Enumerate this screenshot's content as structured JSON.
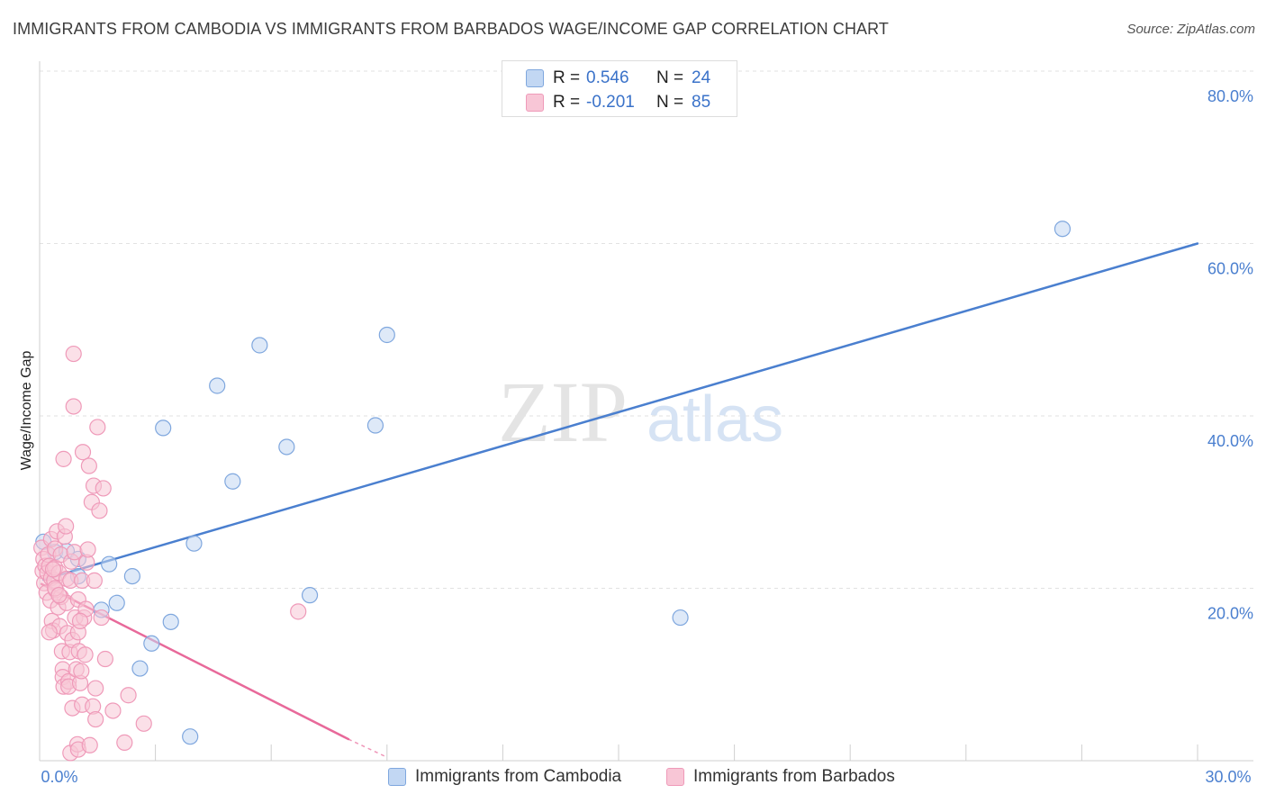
{
  "chart_data": {
    "type": "scatter",
    "title": "IMMIGRANTS FROM CAMBODIA VS IMMIGRANTS FROM BARBADOS WAGE/INCOME GAP CORRELATION CHART",
    "source": "Source: ZipAtlas.com",
    "ylabel": "Wage/Income Gap",
    "xlabel": "",
    "xlim": [
      0,
      30
    ],
    "ylim": [
      0,
      80
    ],
    "x_tick_labels": [
      "0.0%",
      "30.0%"
    ],
    "y_ticks": [
      20,
      40,
      60,
      80
    ],
    "y_tick_labels": [
      "20.0%",
      "40.0%",
      "60.0%",
      "80.0%"
    ],
    "watermark": "ZIPatlas",
    "legend": {
      "rows": [
        {
          "r_label": "R =",
          "r_value": "0.546",
          "n_label": "N =",
          "n_value": "24"
        },
        {
          "r_label": "R =",
          "r_value": "-0.201",
          "n_label": "N =",
          "n_value": "85"
        }
      ]
    },
    "series": [
      {
        "name": "Immigrants from Cambodia",
        "color": "#4a7fcf",
        "fill": "#c2d7f3",
        "stroke": "#7fa7de",
        "trend": {
          "x0": 0.1,
          "y0": 21.0,
          "x1": 30.0,
          "y1": 60.0
        },
        "points": [
          [
            0.1,
            25.4
          ],
          [
            0.4,
            24.2
          ],
          [
            0.7,
            24.3
          ],
          [
            1.0,
            23.4
          ],
          [
            1.0,
            21.4
          ],
          [
            1.6,
            17.5
          ],
          [
            1.8,
            22.8
          ],
          [
            2.0,
            18.3
          ],
          [
            2.4,
            21.4
          ],
          [
            2.6,
            10.7
          ],
          [
            2.9,
            13.6
          ],
          [
            3.2,
            38.6
          ],
          [
            3.4,
            16.1
          ],
          [
            3.9,
            2.8
          ],
          [
            4.0,
            25.2
          ],
          [
            4.6,
            43.5
          ],
          [
            5.0,
            32.4
          ],
          [
            5.7,
            48.2
          ],
          [
            6.4,
            36.4
          ],
          [
            7.0,
            19.2
          ],
          [
            8.7,
            38.9
          ],
          [
            9.0,
            49.4
          ],
          [
            16.6,
            16.6
          ],
          [
            26.5,
            61.7
          ]
        ]
      },
      {
        "name": "Immigrants from Barbados",
        "color": "#e8699a",
        "fill": "#f8c6d6",
        "stroke": "#ef9ab9",
        "trend": {
          "x0": 0.05,
          "y0": 20.5,
          "x1": 8.0,
          "y1": 2.5
        },
        "trend_dashed": {
          "x0": 8.0,
          "y0": 2.5,
          "x1": 9.0,
          "y1": 0.4
        },
        "points": [
          [
            0.05,
            24.7
          ],
          [
            0.08,
            22.0
          ],
          [
            0.1,
            23.4
          ],
          [
            0.12,
            20.6
          ],
          [
            0.15,
            22.6
          ],
          [
            0.18,
            19.5
          ],
          [
            0.2,
            21.8
          ],
          [
            0.22,
            23.9
          ],
          [
            0.25,
            22.6
          ],
          [
            0.28,
            18.6
          ],
          [
            0.3,
            25.7
          ],
          [
            0.3,
            21.2
          ],
          [
            0.32,
            16.2
          ],
          [
            0.35,
            15.1
          ],
          [
            0.38,
            20.9
          ],
          [
            0.4,
            24.6
          ],
          [
            0.4,
            22.4
          ],
          [
            0.42,
            19.8
          ],
          [
            0.45,
            26.6
          ],
          [
            0.48,
            17.8
          ],
          [
            0.5,
            21.8
          ],
          [
            0.52,
            15.6
          ],
          [
            0.55,
            23.9
          ],
          [
            0.55,
            19.0
          ],
          [
            0.58,
            12.7
          ],
          [
            0.6,
            10.6
          ],
          [
            0.6,
            9.7
          ],
          [
            0.62,
            8.6
          ],
          [
            0.62,
            35.0
          ],
          [
            0.65,
            26.0
          ],
          [
            0.68,
            27.2
          ],
          [
            0.7,
            21.1
          ],
          [
            0.7,
            18.3
          ],
          [
            0.72,
            14.8
          ],
          [
            0.75,
            9.2
          ],
          [
            0.75,
            8.6
          ],
          [
            0.78,
            12.6
          ],
          [
            0.8,
            20.9
          ],
          [
            0.8,
            0.9
          ],
          [
            0.82,
            23.1
          ],
          [
            0.85,
            14.0
          ],
          [
            0.85,
            6.1
          ],
          [
            0.88,
            47.2
          ],
          [
            0.88,
            41.1
          ],
          [
            0.9,
            24.2
          ],
          [
            0.92,
            16.6
          ],
          [
            0.95,
            10.6
          ],
          [
            0.98,
            1.9
          ],
          [
            1.0,
            18.7
          ],
          [
            1.0,
            14.9
          ],
          [
            1.0,
            1.3
          ],
          [
            1.02,
            12.7
          ],
          [
            1.05,
            9.0
          ],
          [
            1.08,
            10.4
          ],
          [
            1.1,
            20.9
          ],
          [
            1.1,
            6.5
          ],
          [
            1.12,
            35.8
          ],
          [
            1.15,
            16.6
          ],
          [
            1.18,
            12.3
          ],
          [
            1.2,
            17.6
          ],
          [
            1.22,
            23.0
          ],
          [
            1.25,
            24.5
          ],
          [
            1.28,
            34.2
          ],
          [
            1.3,
            1.8
          ],
          [
            1.35,
            30.0
          ],
          [
            1.38,
            6.3
          ],
          [
            1.4,
            31.9
          ],
          [
            1.42,
            20.9
          ],
          [
            1.45,
            8.4
          ],
          [
            1.45,
            4.8
          ],
          [
            1.5,
            38.7
          ],
          [
            1.55,
            29.0
          ],
          [
            1.6,
            16.6
          ],
          [
            1.65,
            31.6
          ],
          [
            1.7,
            11.8
          ],
          [
            1.9,
            5.8
          ],
          [
            2.2,
            2.1
          ],
          [
            2.3,
            7.6
          ],
          [
            2.7,
            4.3
          ],
          [
            6.7,
            17.3
          ],
          [
            0.25,
            14.9
          ],
          [
            0.4,
            20.0
          ],
          [
            0.5,
            19.2
          ],
          [
            1.05,
            16.2
          ],
          [
            0.35,
            22.2
          ]
        ]
      }
    ]
  }
}
